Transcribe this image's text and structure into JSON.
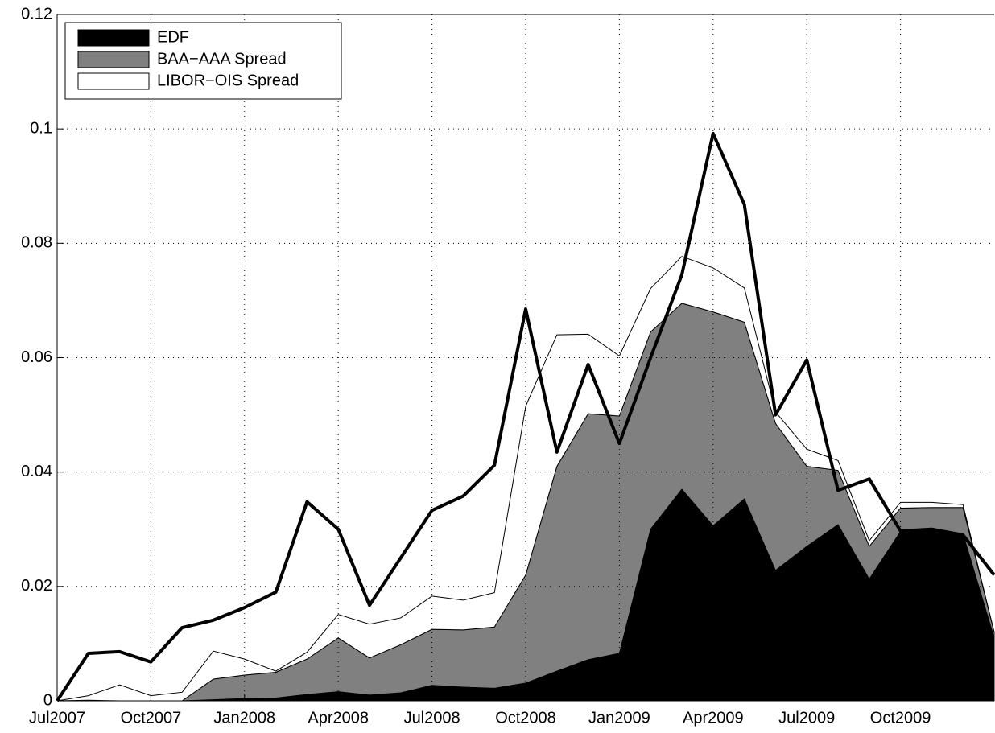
{
  "chart_data": {
    "type": "area",
    "stacked": true,
    "categories": [
      "Jul2007",
      null,
      null,
      "Oct2007",
      null,
      null,
      "Jan2008",
      null,
      null,
      "Apr2008",
      null,
      null,
      "Jul2008",
      null,
      null,
      "Oct2008",
      null,
      null,
      "Jan2009",
      null,
      null,
      "Apr2009",
      null,
      null,
      "Jul2009",
      null,
      null,
      "Oct2009",
      null,
      null,
      null
    ],
    "series": [
      {
        "name": "EDF",
        "type": "area",
        "color": "#000000",
        "values": [
          0,
          0.0001,
          0,
          0,
          0,
          0.0002,
          0.0004,
          0.0005,
          0.0011,
          0.0016,
          0.001,
          0.0014,
          0.0027,
          0.0024,
          0.0022,
          0.0031,
          0.0052,
          0.0072,
          0.0083,
          0.03,
          0.037,
          0.0306,
          0.0353,
          0.0228,
          0.027,
          0.0308,
          0.0213,
          0.0296,
          0.03,
          0.0292,
          0.011
        ]
      },
      {
        "name": "BAA−AAA Spread",
        "type": "area",
        "color": "#808080",
        "values": [
          0,
          0,
          0,
          0,
          0,
          0.0036,
          0.0041,
          0.0045,
          0.0062,
          0.0094,
          0.0065,
          0.0084,
          0.0098,
          0.01,
          0.0107,
          0.0189,
          0.0358,
          0.043,
          0.0415,
          0.0345,
          0.0325,
          0.0374,
          0.0309,
          0.0257,
          0.014,
          0.0095,
          0.0057,
          0.0041,
          0.0038,
          0.0046,
          0.001
        ]
      },
      {
        "name": "LIBOR−OIS Spread",
        "type": "area",
        "color": "#ffffff",
        "values": [
          0,
          0.0008,
          0.0028,
          0.0009,
          0.0015,
          0.0049,
          0.0028,
          0.0002,
          0.0012,
          0.0041,
          0.0059,
          0.0047,
          0.0058,
          0.0052,
          0.006,
          0.0295,
          0.023,
          0.0139,
          0.0105,
          0.0076,
          0.0082,
          0.0077,
          0.006,
          0.002,
          0.003,
          0.0017,
          0.001,
          0.001,
          0.0009,
          0.0005,
          0
        ]
      },
      {
        "type": "line",
        "color": "#000000",
        "values": [
          0,
          0.0083,
          0.0086,
          0.0068,
          0.0128,
          0.0141,
          0.0163,
          0.019,
          0.0348,
          0.03,
          0.0167,
          0.025,
          0.0333,
          0.0358,
          0.0412,
          0.0685,
          0.0435,
          0.0588,
          0.045,
          0.06,
          0.0745,
          0.0992,
          0.0868,
          0.05,
          0.0596,
          0.0368,
          0.0388,
          0.0297,
          0.03,
          0.029,
          0.022
        ]
      }
    ],
    "ylim": [
      0,
      0.12
    ],
    "yticks": [
      0,
      0.02,
      0.04,
      0.06,
      0.08,
      0.1,
      0.12
    ],
    "grid": true,
    "legend": "upper-left"
  }
}
